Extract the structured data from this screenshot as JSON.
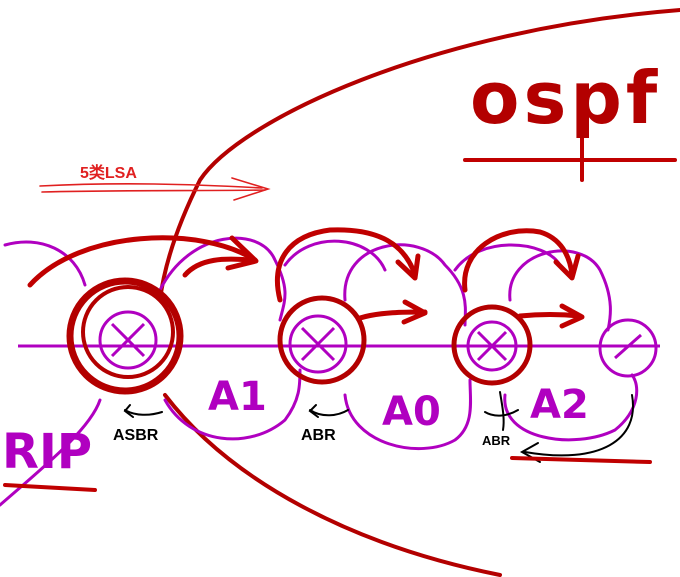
{
  "diagram": {
    "title": "ospf",
    "lsa_label": "5类LSA",
    "areas": {
      "rip": "RIP",
      "a1": "A1",
      "a0": "A0",
      "a2": "A2"
    },
    "router_roles": {
      "asbr": "ASBR",
      "abr_1": "ABR",
      "abr_2": "ABR"
    }
  },
  "colors": {
    "ospf_boundary": "#b30000",
    "lsa_flow": "#c00000",
    "area_outline": "#b000c0",
    "lsa_arrow_label": "#e02020",
    "annotation": "#000000"
  }
}
